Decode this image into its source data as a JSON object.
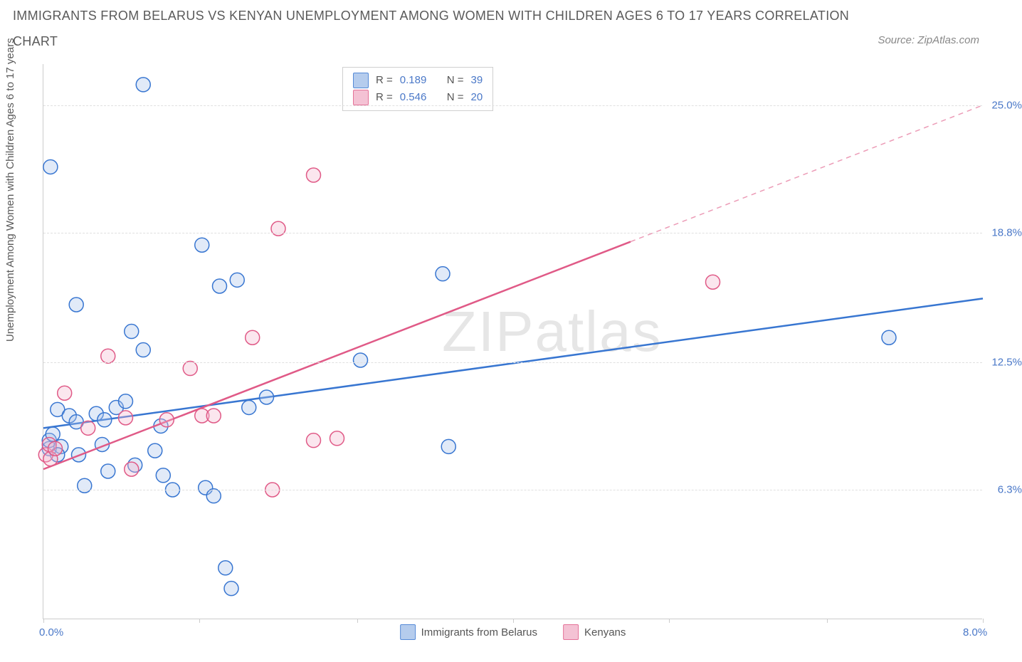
{
  "title_line1": "IMMIGRANTS FROM BELARUS VS KENYAN UNEMPLOYMENT AMONG WOMEN WITH CHILDREN AGES 6 TO 17 YEARS CORRELATION",
  "title_line2": "CHART",
  "source": "Source: ZipAtlas.com",
  "ylabel": "Unemployment Among Women with Children Ages 6 to 17 years",
  "watermark_bold": "ZIP",
  "watermark_thin": "atlas",
  "chart": {
    "type": "scatter",
    "xlim": [
      0.0,
      8.0
    ],
    "ylim": [
      0.0,
      27.0
    ],
    "x_ticks": [
      0.0,
      1.33,
      2.67,
      4.0,
      5.33,
      6.67,
      8.0
    ],
    "x_tick_labels": {
      "0": "0.0%",
      "6": "8.0%"
    },
    "y_grid": [
      6.3,
      12.5,
      18.8,
      25.0
    ],
    "y_tick_labels": [
      "6.3%",
      "12.5%",
      "18.8%",
      "25.0%"
    ],
    "background_color": "#ffffff",
    "grid_color": "#e0e0e0",
    "axis_color": "#cccccc",
    "tick_label_color": "#4a78c8",
    "marker_radius": 10,
    "marker_stroke_width": 1.5,
    "marker_fill_opacity": 0.35,
    "line_width": 2.5,
    "series": [
      {
        "name": "Immigrants from Belarus",
        "color_stroke": "#3876d1",
        "color_fill": "#a9c4ea",
        "R": "0.189",
        "N": "39",
        "trend": {
          "x1": 0.0,
          "y1": 9.3,
          "x2": 8.0,
          "y2": 15.6,
          "solid_to_x": 8.0
        },
        "points": [
          [
            0.05,
            8.3
          ],
          [
            0.05,
            8.7
          ],
          [
            0.08,
            9.0
          ],
          [
            0.06,
            22.0
          ],
          [
            0.12,
            10.2
          ],
          [
            0.15,
            8.4
          ],
          [
            0.12,
            8.0
          ],
          [
            0.22,
            9.9
          ],
          [
            0.28,
            9.6
          ],
          [
            0.28,
            15.3
          ],
          [
            0.3,
            8.0
          ],
          [
            0.35,
            6.5
          ],
          [
            0.45,
            10.0
          ],
          [
            0.5,
            8.5
          ],
          [
            0.52,
            9.7
          ],
          [
            0.55,
            7.2
          ],
          [
            0.62,
            10.3
          ],
          [
            0.7,
            10.6
          ],
          [
            0.75,
            14.0
          ],
          [
            0.78,
            7.5
          ],
          [
            0.85,
            26.0
          ],
          [
            0.85,
            13.1
          ],
          [
            0.95,
            8.2
          ],
          [
            1.0,
            9.4
          ],
          [
            1.02,
            7.0
          ],
          [
            1.1,
            6.3
          ],
          [
            1.35,
            18.2
          ],
          [
            1.38,
            6.4
          ],
          [
            1.45,
            6.0
          ],
          [
            1.5,
            16.2
          ],
          [
            1.55,
            2.5
          ],
          [
            1.6,
            1.5
          ],
          [
            1.65,
            16.5
          ],
          [
            1.75,
            10.3
          ],
          [
            1.9,
            10.8
          ],
          [
            2.7,
            12.6
          ],
          [
            3.4,
            16.8
          ],
          [
            3.45,
            8.4
          ],
          [
            7.2,
            13.7
          ]
        ]
      },
      {
        "name": "Kenyans",
        "color_stroke": "#e05a87",
        "color_fill": "#f3b8cd",
        "R": "0.546",
        "N": "20",
        "trend": {
          "x1": 0.0,
          "y1": 7.3,
          "x2": 8.0,
          "y2": 25.0,
          "solid_to_x": 5.0
        },
        "points": [
          [
            0.02,
            8.0
          ],
          [
            0.05,
            8.5
          ],
          [
            0.06,
            7.8
          ],
          [
            0.1,
            8.3
          ],
          [
            0.18,
            11.0
          ],
          [
            0.38,
            9.3
          ],
          [
            0.55,
            12.8
          ],
          [
            0.7,
            9.8
          ],
          [
            0.75,
            7.3
          ],
          [
            1.05,
            9.7
          ],
          [
            1.25,
            12.2
          ],
          [
            1.35,
            9.9
          ],
          [
            1.45,
            9.9
          ],
          [
            1.78,
            13.7
          ],
          [
            1.95,
            6.3
          ],
          [
            2.0,
            19.0
          ],
          [
            2.3,
            8.7
          ],
          [
            2.3,
            21.6
          ],
          [
            2.5,
            8.8
          ],
          [
            5.7,
            16.4
          ]
        ]
      }
    ]
  },
  "legend_top": {
    "label_R": "R =",
    "label_N": "N ="
  },
  "legend_bottom": {
    "series1": "Immigrants from Belarus",
    "series2": "Kenyans"
  }
}
